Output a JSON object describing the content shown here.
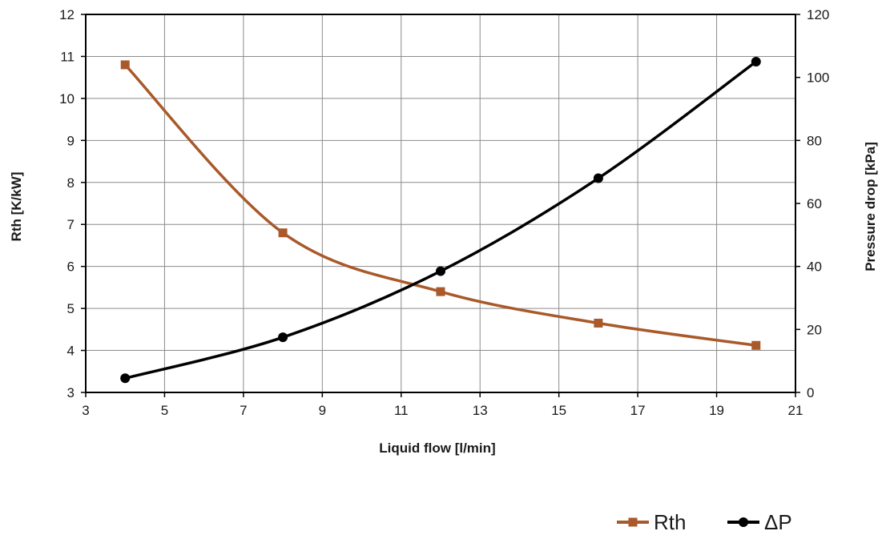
{
  "chart_data": {
    "type": "line",
    "xlabel": "Liquid flow [l/min]",
    "ylabel_left": "Rth [K/kW]",
    "ylabel_right": "Pressure drop [kPa]",
    "xlim": [
      3,
      21
    ],
    "xticks": [
      3,
      5,
      7,
      9,
      11,
      13,
      15,
      17,
      19,
      21
    ],
    "ylim_left": [
      3,
      12
    ],
    "yticks_left": [
      3,
      4,
      5,
      6,
      7,
      8,
      9,
      10,
      11,
      12
    ],
    "ylim_right": [
      0,
      120
    ],
    "yticks_right": [
      0,
      20,
      40,
      60,
      80,
      100,
      120
    ],
    "grid": true,
    "legend_position": "bottom-right",
    "series": [
      {
        "name": "Rth",
        "axis": "left",
        "color": "#a9592a",
        "marker": "square",
        "x": [
          4,
          8,
          12,
          16,
          20
        ],
        "y": [
          10.8,
          6.8,
          5.4,
          4.65,
          4.12
        ]
      },
      {
        "name": "ΔP",
        "axis": "right",
        "color": "#000000",
        "marker": "circle",
        "x": [
          4,
          8,
          12,
          16,
          20
        ],
        "y": [
          4.5,
          17.5,
          38.5,
          68,
          105
        ]
      }
    ]
  }
}
